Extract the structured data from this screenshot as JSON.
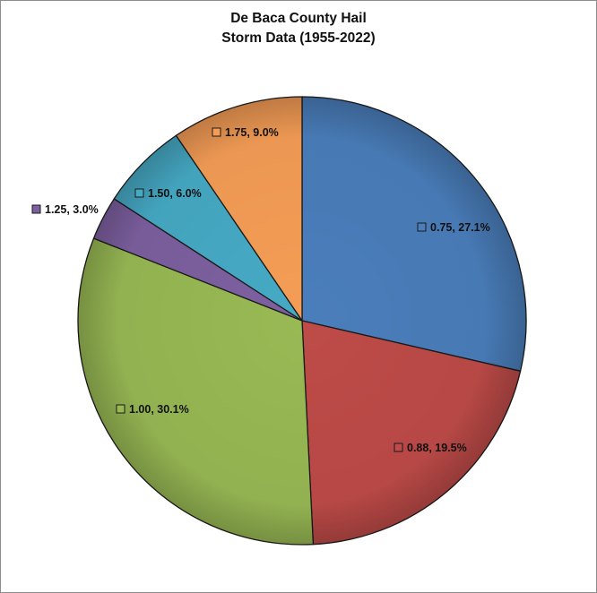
{
  "chart_data": {
    "type": "pie",
    "title_lines": [
      "De Baca County Hail",
      "Storm Data (1955-2022)"
    ],
    "slices": [
      {
        "label": "0.75",
        "value": 27.1,
        "text": "0.75, 27.1%",
        "color": "#4a7ebb"
      },
      {
        "label": "0.88",
        "value": 19.5,
        "text": "0.88, 19.5%",
        "color": "#be4b48"
      },
      {
        "label": "1.00",
        "value": 30.1,
        "text": "1.00, 30.1%",
        "color": "#98b954"
      },
      {
        "label": "1.25",
        "value": 3.0,
        "text": "1.25, 3.0%",
        "color": "#7d60a0"
      },
      {
        "label": "1.50",
        "value": 6.0,
        "text": "1.50, 6.0%",
        "color": "#46aac5"
      },
      {
        "label": "1.75",
        "value": 9.0,
        "text": "1.75, 9.0%",
        "color": "#f59d56"
      }
    ],
    "data_labels": "category, percent",
    "start_angle": "12 o'clock, clockwise",
    "legend": "none"
  }
}
